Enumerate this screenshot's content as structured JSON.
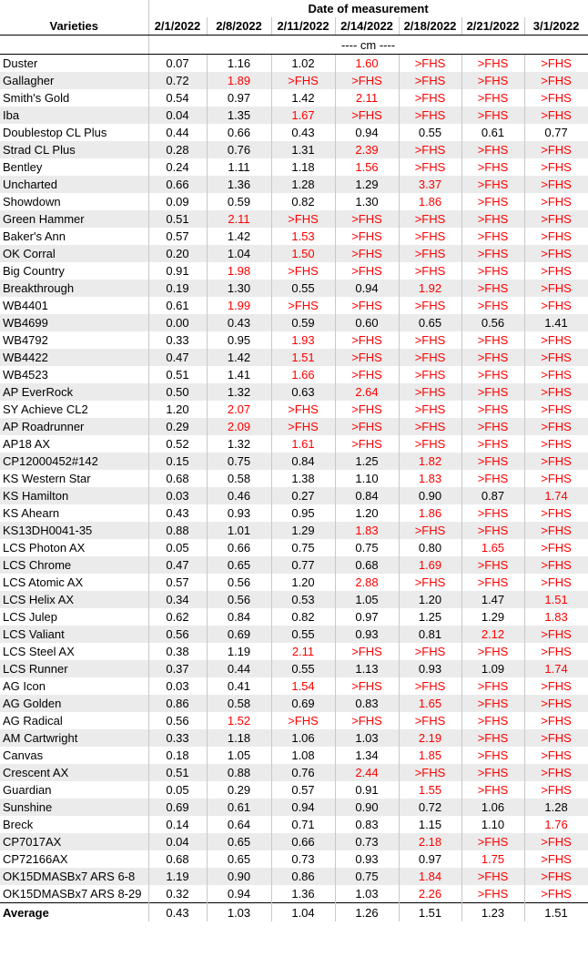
{
  "table": {
    "group_header": "Date of measurement",
    "columns": [
      "Varieties",
      "2/1/2022",
      "2/8/2022",
      "2/11/2022",
      "2/14/2022",
      "2/18/2022",
      "2/21/2022",
      "3/1/2022"
    ],
    "unit": "---- cm ----",
    "highlight_color": "#ff0000",
    "rows": [
      {
        "variety": "Duster",
        "values": [
          "0.07",
          "1.16",
          "1.02",
          "1.60",
          ">FHS",
          ">FHS",
          ">FHS"
        ],
        "red": [
          3,
          4,
          5,
          6
        ]
      },
      {
        "variety": "Gallagher",
        "values": [
          "0.72",
          "1.89",
          ">FHS",
          ">FHS",
          ">FHS",
          ">FHS",
          ">FHS"
        ],
        "red": [
          1,
          2,
          3,
          4,
          5,
          6
        ]
      },
      {
        "variety": "Smith's Gold",
        "values": [
          "0.54",
          "0.97",
          "1.42",
          "2.11",
          ">FHS",
          ">FHS",
          ">FHS"
        ],
        "red": [
          3,
          4,
          5,
          6
        ]
      },
      {
        "variety": "Iba",
        "values": [
          "0.04",
          "1.35",
          "1.67",
          ">FHS",
          ">FHS",
          ">FHS",
          ">FHS"
        ],
        "red": [
          2,
          3,
          4,
          5,
          6
        ]
      },
      {
        "variety": "Doublestop CL Plus",
        "values": [
          "0.44",
          "0.66",
          "0.43",
          "0.94",
          "0.55",
          "0.61",
          "0.77"
        ],
        "red": []
      },
      {
        "variety": "Strad CL Plus",
        "values": [
          "0.28",
          "0.76",
          "1.31",
          "2.39",
          ">FHS",
          ">FHS",
          ">FHS"
        ],
        "red": [
          3,
          4,
          5,
          6
        ]
      },
      {
        "variety": "Bentley",
        "values": [
          "0.24",
          "1.11",
          "1.18",
          "1.56",
          ">FHS",
          ">FHS",
          ">FHS"
        ],
        "red": [
          3,
          4,
          5,
          6
        ]
      },
      {
        "variety": "Uncharted",
        "values": [
          "0.66",
          "1.36",
          "1.28",
          "1.29",
          "3.37",
          ">FHS",
          ">FHS"
        ],
        "red": [
          4,
          5,
          6
        ]
      },
      {
        "variety": "Showdown",
        "values": [
          "0.09",
          "0.59",
          "0.82",
          "1.30",
          "1.86",
          ">FHS",
          ">FHS"
        ],
        "red": [
          4,
          5,
          6
        ]
      },
      {
        "variety": "Green Hammer",
        "values": [
          "0.51",
          "2.11",
          ">FHS",
          ">FHS",
          ">FHS",
          ">FHS",
          ">FHS"
        ],
        "red": [
          1,
          2,
          3,
          4,
          5,
          6
        ]
      },
      {
        "variety": "Baker's Ann",
        "values": [
          "0.57",
          "1.42",
          "1.53",
          ">FHS",
          ">FHS",
          ">FHS",
          ">FHS"
        ],
        "red": [
          2,
          3,
          4,
          5,
          6
        ]
      },
      {
        "variety": "OK Corral",
        "values": [
          "0.20",
          "1.04",
          "1.50",
          ">FHS",
          ">FHS",
          ">FHS",
          ">FHS"
        ],
        "red": [
          2,
          3,
          4,
          5,
          6
        ]
      },
      {
        "variety": "Big Country",
        "values": [
          "0.91",
          "1.98",
          ">FHS",
          ">FHS",
          ">FHS",
          ">FHS",
          ">FHS"
        ],
        "red": [
          1,
          2,
          3,
          4,
          5,
          6
        ]
      },
      {
        "variety": "Breakthrough",
        "values": [
          "0.19",
          "1.30",
          "0.55",
          "0.94",
          "1.92",
          ">FHS",
          ">FHS"
        ],
        "red": [
          4,
          5,
          6
        ]
      },
      {
        "variety": "WB4401",
        "values": [
          "0.61",
          "1.99",
          ">FHS",
          ">FHS",
          ">FHS",
          ">FHS",
          ">FHS"
        ],
        "red": [
          1,
          2,
          3,
          4,
          5,
          6
        ]
      },
      {
        "variety": "WB4699",
        "values": [
          "0.00",
          "0.43",
          "0.59",
          "0.60",
          "0.65",
          "0.56",
          "1.41"
        ],
        "red": []
      },
      {
        "variety": "WB4792",
        "values": [
          "0.33",
          "0.95",
          "1.93",
          ">FHS",
          ">FHS",
          ">FHS",
          ">FHS"
        ],
        "red": [
          2,
          3,
          4,
          5,
          6
        ]
      },
      {
        "variety": "WB4422",
        "values": [
          "0.47",
          "1.42",
          "1.51",
          ">FHS",
          ">FHS",
          ">FHS",
          ">FHS"
        ],
        "red": [
          2,
          3,
          4,
          5,
          6
        ]
      },
      {
        "variety": "WB4523",
        "values": [
          "0.51",
          "1.41",
          "1.66",
          ">FHS",
          ">FHS",
          ">FHS",
          ">FHS"
        ],
        "red": [
          2,
          3,
          4,
          5,
          6
        ]
      },
      {
        "variety": "AP EverRock",
        "values": [
          "0.50",
          "1.32",
          "0.63",
          "2.64",
          ">FHS",
          ">FHS",
          ">FHS"
        ],
        "red": [
          3,
          4,
          5,
          6
        ]
      },
      {
        "variety": "SY Achieve CL2",
        "values": [
          "1.20",
          "2.07",
          ">FHS",
          ">FHS",
          ">FHS",
          ">FHS",
          ">FHS"
        ],
        "red": [
          1,
          2,
          3,
          4,
          5,
          6
        ]
      },
      {
        "variety": "AP Roadrunner",
        "values": [
          "0.29",
          "2.09",
          ">FHS",
          ">FHS",
          ">FHS",
          ">FHS",
          ">FHS"
        ],
        "red": [
          1,
          2,
          3,
          4,
          5,
          6
        ]
      },
      {
        "variety": "AP18 AX",
        "values": [
          "0.52",
          "1.32",
          "1.61",
          ">FHS",
          ">FHS",
          ">FHS",
          ">FHS"
        ],
        "red": [
          2,
          3,
          4,
          5,
          6
        ]
      },
      {
        "variety": "CP12000452#142",
        "values": [
          "0.15",
          "0.75",
          "0.84",
          "1.25",
          "1.82",
          ">FHS",
          ">FHS"
        ],
        "red": [
          4,
          5,
          6
        ]
      },
      {
        "variety": "KS Western Star",
        "values": [
          "0.68",
          "0.58",
          "1.38",
          "1.10",
          "1.83",
          ">FHS",
          ">FHS"
        ],
        "red": [
          4,
          5,
          6
        ]
      },
      {
        "variety": "KS Hamilton",
        "values": [
          "0.03",
          "0.46",
          "0.27",
          "0.84",
          "0.90",
          "0.87",
          "1.74"
        ],
        "red": [
          6
        ]
      },
      {
        "variety": "KS Ahearn",
        "values": [
          "0.43",
          "0.93",
          "0.95",
          "1.20",
          "1.86",
          ">FHS",
          ">FHS"
        ],
        "red": [
          4,
          5,
          6
        ]
      },
      {
        "variety": "KS13DH0041-35",
        "values": [
          "0.88",
          "1.01",
          "1.29",
          "1.83",
          ">FHS",
          ">FHS",
          ">FHS"
        ],
        "red": [
          3,
          4,
          5,
          6
        ]
      },
      {
        "variety": "LCS Photon AX",
        "values": [
          "0.05",
          "0.66",
          "0.75",
          "0.75",
          "0.80",
          "1.65",
          ">FHS"
        ],
        "red": [
          5,
          6
        ]
      },
      {
        "variety": "LCS Chrome",
        "values": [
          "0.47",
          "0.65",
          "0.77",
          "0.68",
          "1.69",
          ">FHS",
          ">FHS"
        ],
        "red": [
          4,
          5,
          6
        ]
      },
      {
        "variety": "LCS Atomic AX",
        "values": [
          "0.57",
          "0.56",
          "1.20",
          "2.88",
          ">FHS",
          ">FHS",
          ">FHS"
        ],
        "red": [
          3,
          4,
          5,
          6
        ]
      },
      {
        "variety": "LCS Helix AX",
        "values": [
          "0.34",
          "0.56",
          "0.53",
          "1.05",
          "1.20",
          "1.47",
          "1.51"
        ],
        "red": [
          6
        ]
      },
      {
        "variety": "LCS Julep",
        "values": [
          "0.62",
          "0.84",
          "0.82",
          "0.97",
          "1.25",
          "1.29",
          "1.83"
        ],
        "red": [
          6
        ]
      },
      {
        "variety": "LCS Valiant",
        "values": [
          "0.56",
          "0.69",
          "0.55",
          "0.93",
          "0.81",
          "2.12",
          ">FHS"
        ],
        "red": [
          5,
          6
        ]
      },
      {
        "variety": "LCS Steel AX",
        "values": [
          "0.38",
          "1.19",
          "2.11",
          ">FHS",
          ">FHS",
          ">FHS",
          ">FHS"
        ],
        "red": [
          2,
          3,
          4,
          5,
          6
        ]
      },
      {
        "variety": "LCS Runner",
        "values": [
          "0.37",
          "0.44",
          "0.55",
          "1.13",
          "0.93",
          "1.09",
          "1.74"
        ],
        "red": [
          6
        ]
      },
      {
        "variety": "AG Icon",
        "values": [
          "0.03",
          "0.41",
          "1.54",
          ">FHS",
          ">FHS",
          ">FHS",
          ">FHS"
        ],
        "red": [
          2,
          3,
          4,
          5,
          6
        ]
      },
      {
        "variety": "AG Golden",
        "values": [
          "0.86",
          "0.58",
          "0.69",
          "0.83",
          "1.65",
          ">FHS",
          ">FHS"
        ],
        "red": [
          4,
          5,
          6
        ]
      },
      {
        "variety": "AG Radical",
        "values": [
          "0.56",
          "1.52",
          ">FHS",
          ">FHS",
          ">FHS",
          ">FHS",
          ">FHS"
        ],
        "red": [
          1,
          2,
          3,
          4,
          5,
          6
        ]
      },
      {
        "variety": "AM Cartwright",
        "values": [
          "0.33",
          "1.18",
          "1.06",
          "1.03",
          "2.19",
          ">FHS",
          ">FHS"
        ],
        "red": [
          4,
          5,
          6
        ]
      },
      {
        "variety": "Canvas",
        "values": [
          "0.18",
          "1.05",
          "1.08",
          "1.34",
          "1.85",
          ">FHS",
          ">FHS"
        ],
        "red": [
          4,
          5,
          6
        ]
      },
      {
        "variety": "Crescent AX",
        "values": [
          "0.51",
          "0.88",
          "0.76",
          "2.44",
          ">FHS",
          ">FHS",
          ">FHS"
        ],
        "red": [
          3,
          4,
          5,
          6
        ]
      },
      {
        "variety": "Guardian",
        "values": [
          "0.05",
          "0.29",
          "0.57",
          "0.91",
          "1.55",
          ">FHS",
          ">FHS"
        ],
        "red": [
          4,
          5,
          6
        ]
      },
      {
        "variety": "Sunshine",
        "values": [
          "0.69",
          "0.61",
          "0.94",
          "0.90",
          "0.72",
          "1.06",
          "1.28"
        ],
        "red": []
      },
      {
        "variety": "Breck",
        "values": [
          "0.14",
          "0.64",
          "0.71",
          "0.83",
          "1.15",
          "1.10",
          "1.76"
        ],
        "red": [
          6
        ]
      },
      {
        "variety": "CP7017AX",
        "values": [
          "0.04",
          "0.65",
          "0.66",
          "0.73",
          "2.18",
          ">FHS",
          ">FHS"
        ],
        "red": [
          4,
          5,
          6
        ]
      },
      {
        "variety": "CP72166AX",
        "values": [
          "0.68",
          "0.65",
          "0.73",
          "0.93",
          "0.97",
          "1.75",
          ">FHS"
        ],
        "red": [
          5,
          6
        ]
      },
      {
        "variety": "OK15DMASBx7 ARS 6-8",
        "values": [
          "1.19",
          "0.90",
          "0.86",
          "0.75",
          "1.84",
          ">FHS",
          ">FHS"
        ],
        "red": [
          4,
          5,
          6
        ]
      },
      {
        "variety": "OK15DMASBx7 ARS 8-29",
        "values": [
          "0.32",
          "0.94",
          "1.36",
          "1.03",
          "2.26",
          ">FHS",
          ">FHS"
        ],
        "red": [
          4,
          5,
          6
        ]
      }
    ],
    "average": {
      "label": "Average",
      "values": [
        "0.43",
        "1.03",
        "1.04",
        "1.26",
        "1.51",
        "1.23",
        "1.51"
      ]
    }
  }
}
